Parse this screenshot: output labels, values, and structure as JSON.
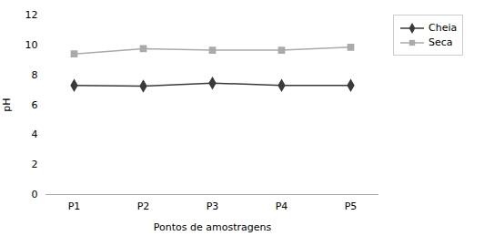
{
  "chart_data": {
    "type": "line",
    "categories": [
      "P1",
      "P2",
      "P3",
      "P4",
      "P5"
    ],
    "series": [
      {
        "name": "Cheia",
        "color": "#3a3a3a",
        "marker": "diamond",
        "values": [
          7.3,
          7.25,
          7.45,
          7.3,
          7.3
        ]
      },
      {
        "name": "Seca",
        "color": "#aaaaaa",
        "marker": "square",
        "values": [
          9.4,
          9.75,
          9.65,
          9.65,
          9.85
        ]
      }
    ],
    "xlabel": "Pontos de amostragens",
    "ylabel": "pH",
    "ylim": [
      0,
      12
    ],
    "yticks": [
      0,
      2,
      4,
      6,
      8,
      10,
      12
    ],
    "legend": "upper right",
    "grid": false
  }
}
